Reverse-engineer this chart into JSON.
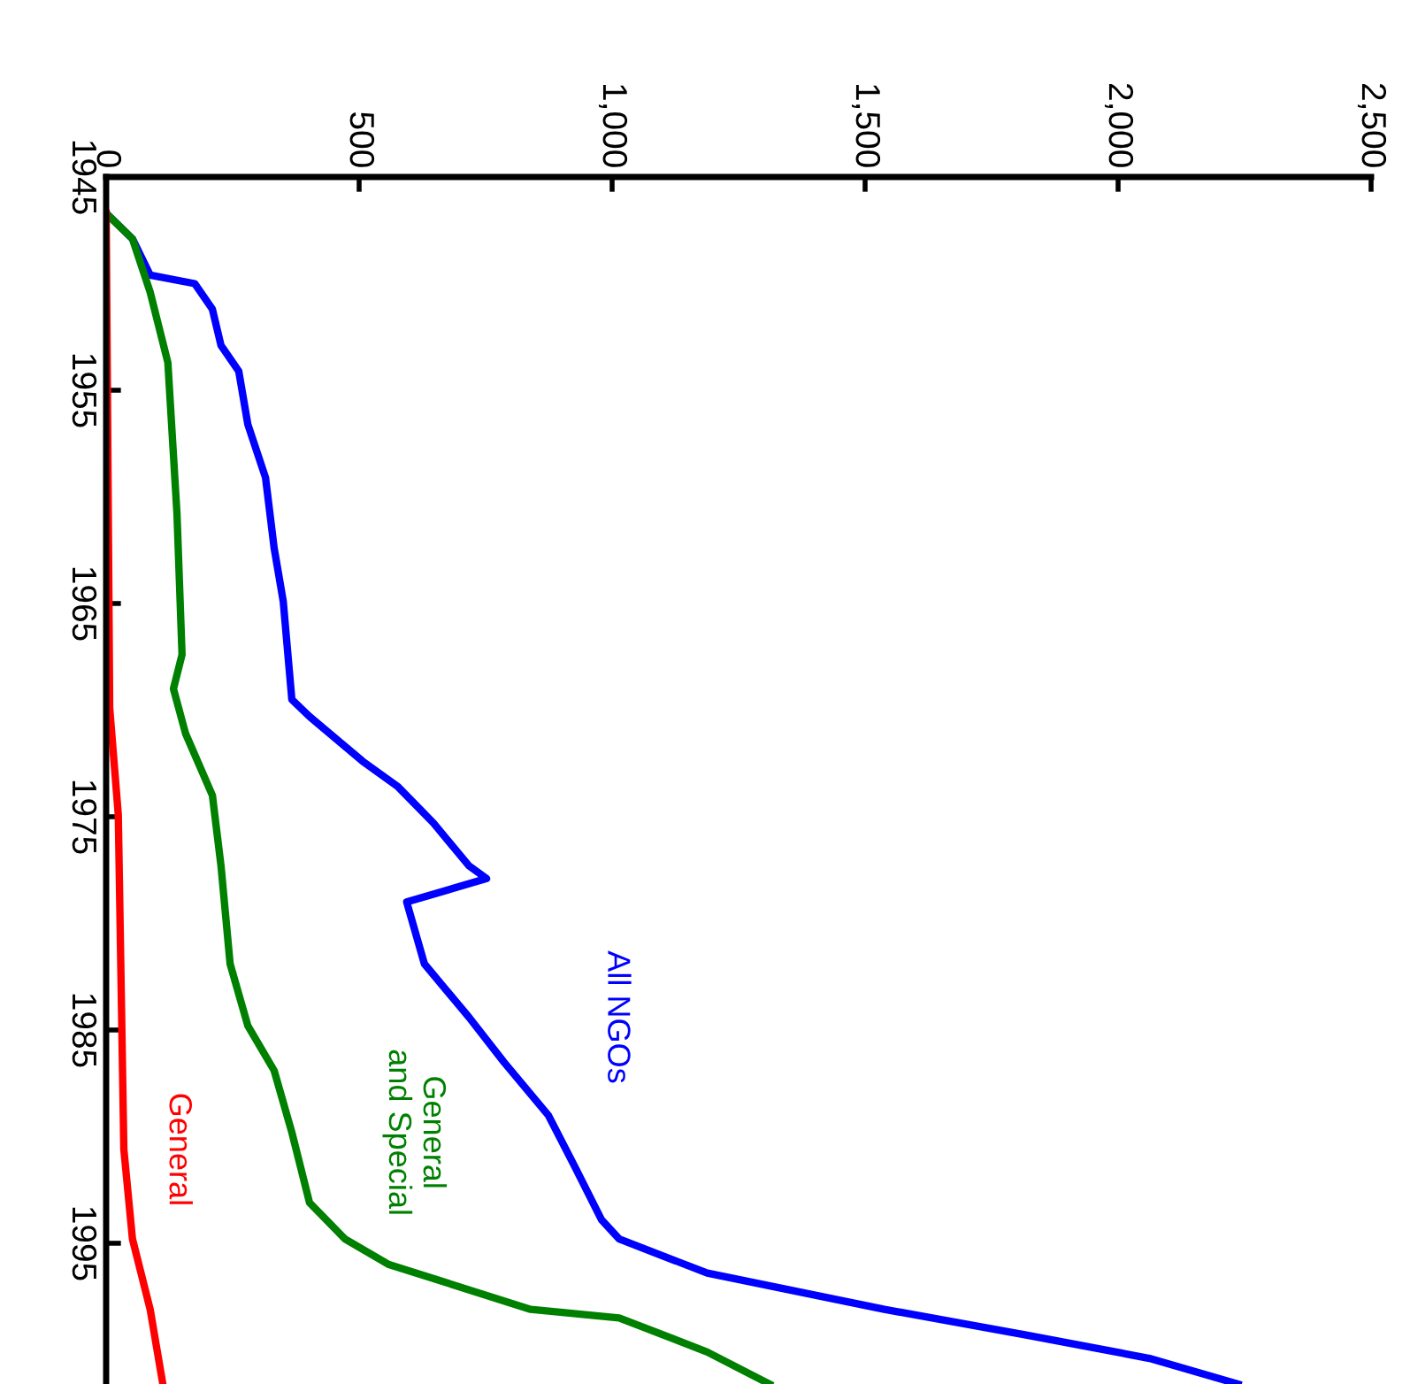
{
  "chart_data": {
    "type": "line",
    "orientation": "horizontal",
    "ylim": [
      2001.6,
      1945
    ],
    "yticks": [
      1945,
      1955,
      1965,
      1975,
      1985,
      1995
    ],
    "xlim": [
      0,
      2500
    ],
    "xticks": [
      0,
      500,
      {
        "value": 1000,
        "label": "1,000"
      },
      {
        "value": 1500,
        "label": "1,500"
      },
      {
        "value": 2000,
        "label": "2,000"
      },
      {
        "value": 2500,
        "label": "2,500"
      }
    ],
    "grid": false,
    "legend": false,
    "marker": "none",
    "line_style": "solid",
    "series": [
      {
        "name": "All NGOs",
        "color": "#0000ff",
        "x": [
          1946.7,
          1947.9,
          1949.6,
          1950,
          1951.2,
          1952.9,
          1954.1,
          1956.6,
          1959.1,
          1962.4,
          1964.9,
          1969.5,
          1970.3,
          1972.4,
          1973.6,
          1975.3,
          1977.3,
          1977.9,
          1979,
          1981.9,
          1984.4,
          1986.5,
          1989,
          1991.4,
          1993.9,
          1994.8,
          1996.4,
          1998.1,
          1999.3,
          2000.4,
          2001.6
        ],
        "values": [
          0,
          52,
          87,
          175,
          210,
          227,
          262,
          280,
          315,
          332,
          350,
          367,
          402,
          507,
          577,
          647,
          717,
          752,
          594,
          629,
          717,
          786,
          874,
          926,
          979,
          1014,
          1188,
          1538,
          1818,
          2062,
          2237
        ]
      },
      {
        "name": "General\nand Special",
        "color": "#008000",
        "x": [
          1946.7,
          1947.9,
          1950.4,
          1953.7,
          1960.8,
          1967.4,
          1969,
          1971.1,
          1974,
          1977.3,
          1981.9,
          1984.8,
          1986.9,
          1989.8,
          1993.1,
          1994.8,
          1996,
          1998.1,
          1998.5,
          2000.1,
          2001.6
        ],
        "values": [
          0,
          52,
          87,
          122,
          140,
          150,
          133,
          157,
          210,
          227,
          245,
          280,
          332,
          367,
          402,
          472,
          559,
          839,
          1014,
          1188,
          1311
        ]
      },
      {
        "name": "General",
        "color": "#ff0000",
        "x": [
          1946.7,
          1969.9,
          1974.9,
          1990.6,
          1994.8,
          1998.1,
          2001.6
        ],
        "values": [
          0,
          7,
          24,
          35,
          52,
          87,
          112
        ]
      }
    ]
  }
}
